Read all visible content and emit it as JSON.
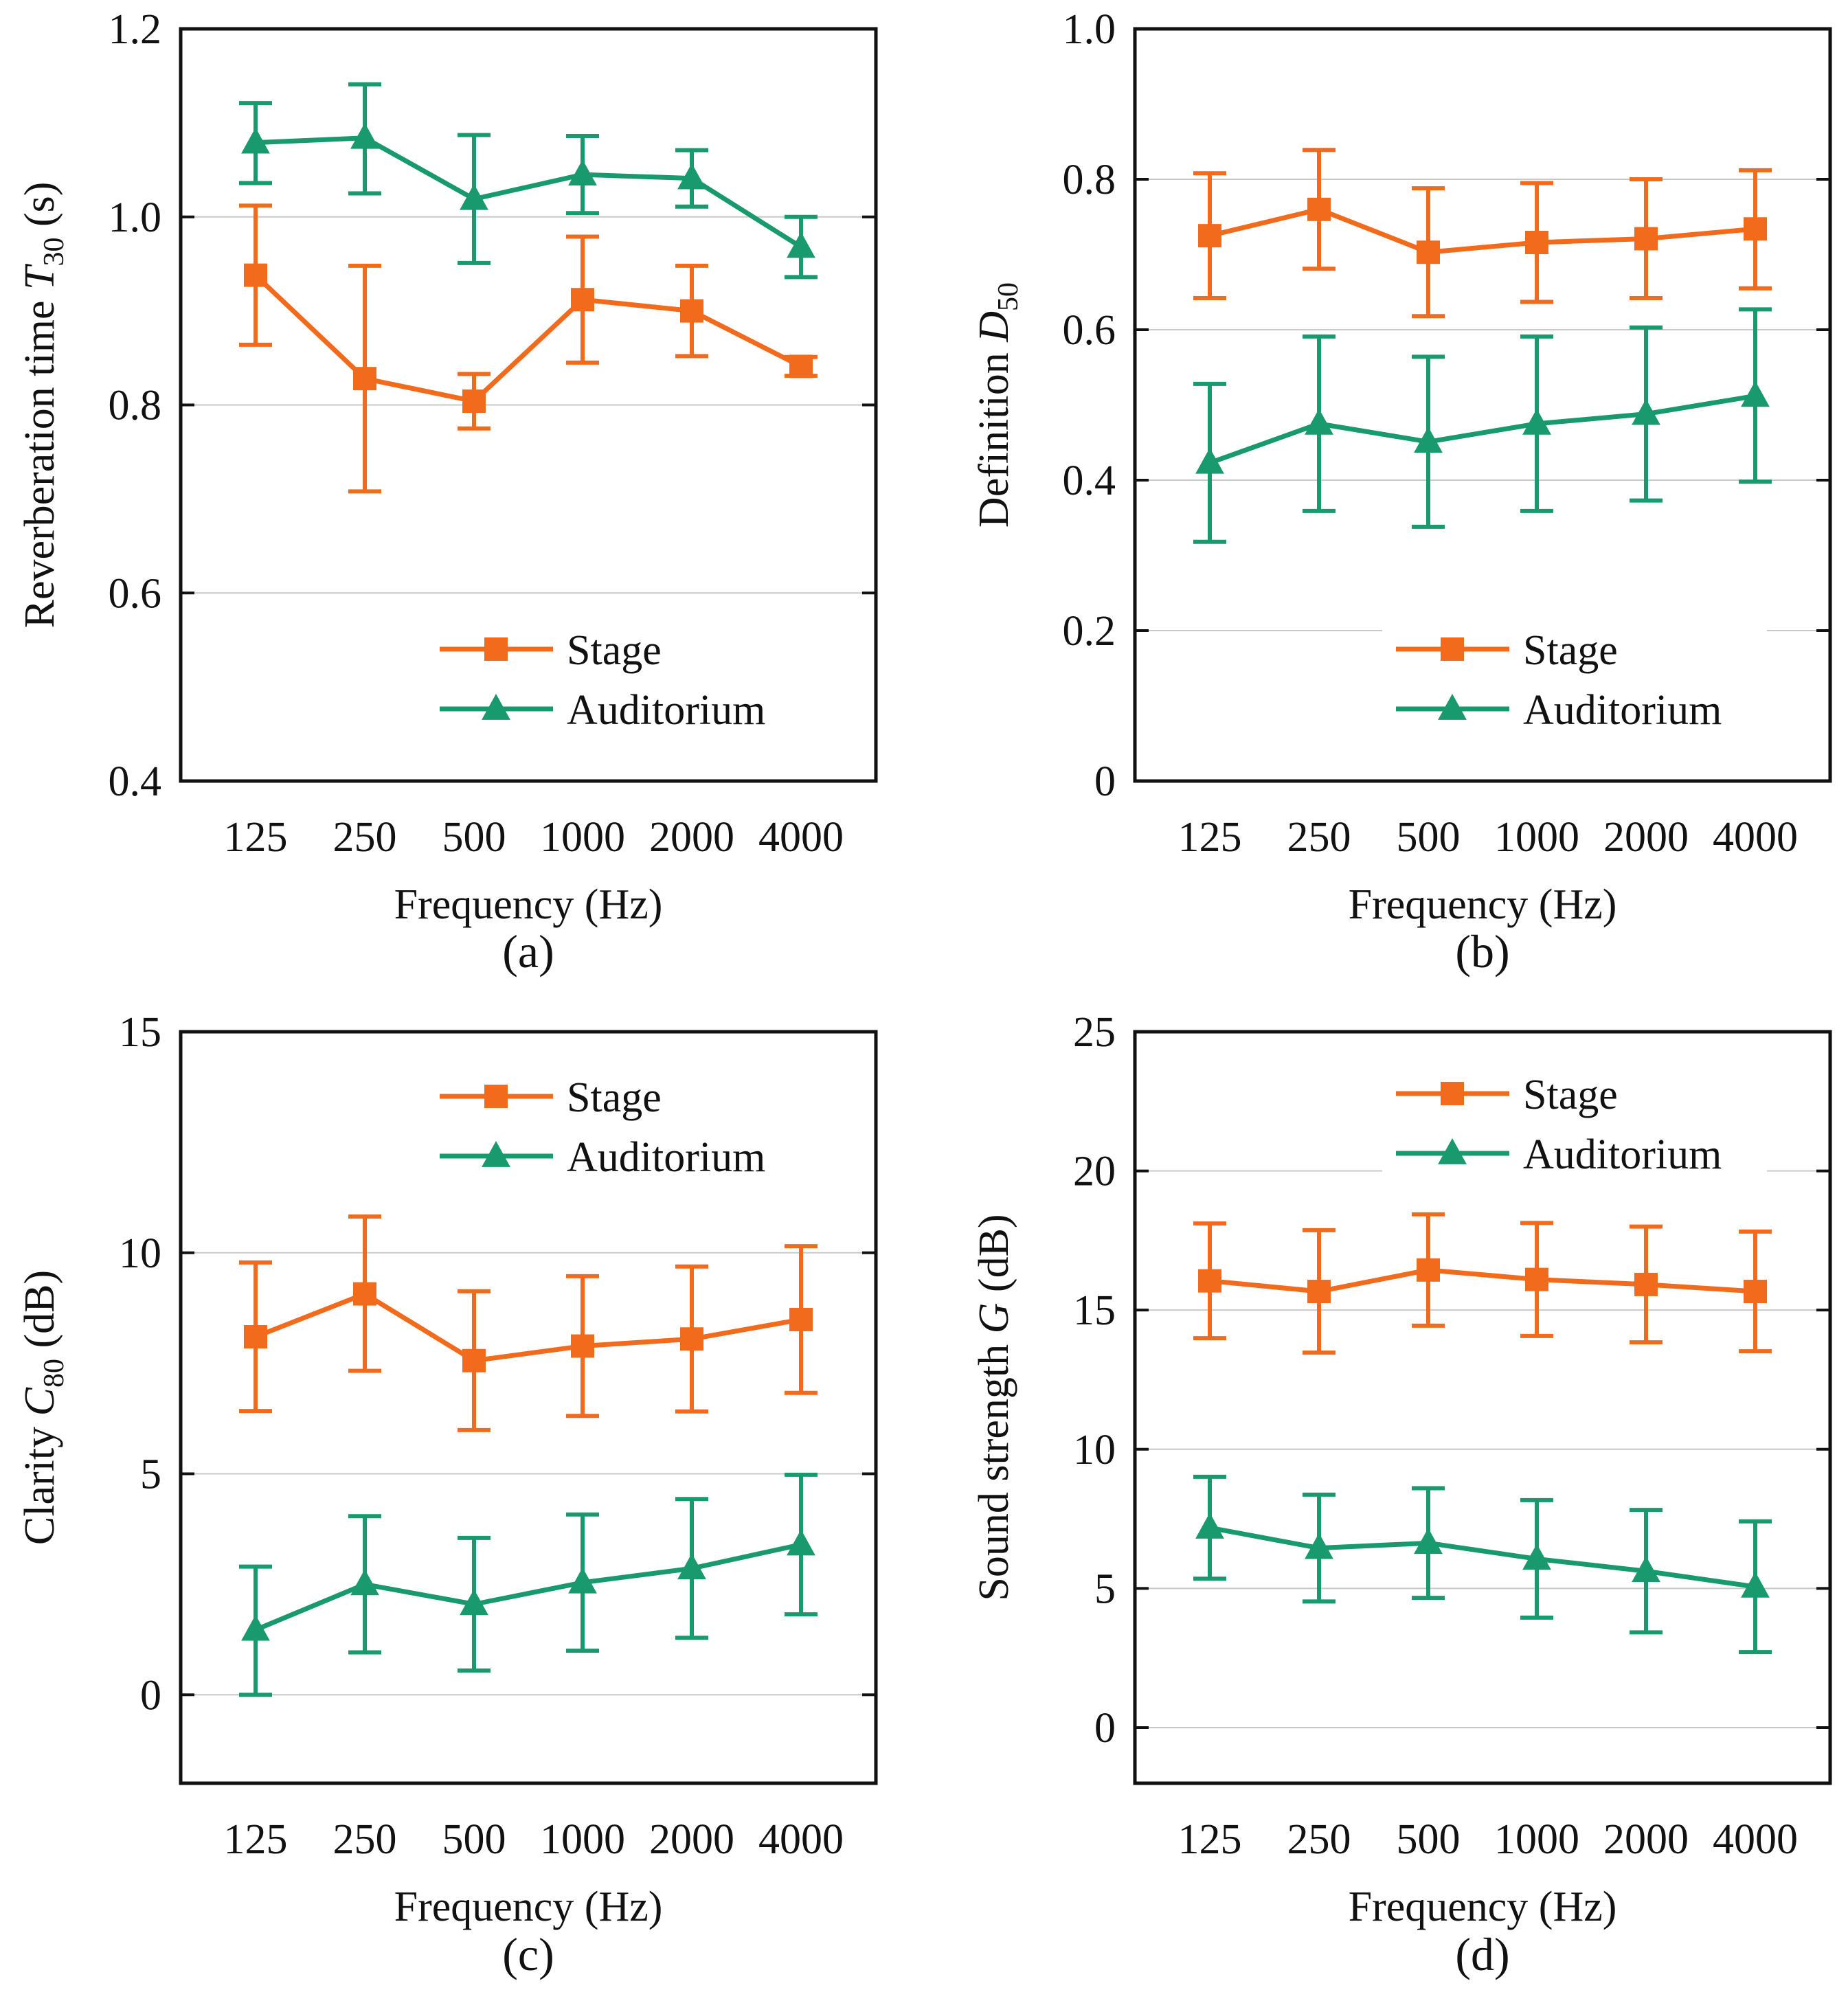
{
  "colors": {
    "stage": "#F26A1B",
    "auditorium": "#199A6E",
    "grid": "#c9c9c9",
    "frame": "#111111"
  },
  "chart_data": [
    {
      "type": "line",
      "panel_label": "(a)",
      "title": "",
      "xlabel": "Frequency (Hz)",
      "ylabel_prefix": "Reverberation time ",
      "ylabel_symbol": "T",
      "ylabel_sub": "30",
      "ylabel_suffix": " (s)",
      "categories": [
        "125",
        "250",
        "500",
        "1000",
        "2000",
        "4000"
      ],
      "ylim": [
        0.4,
        1.2
      ],
      "yticks": [
        0.4,
        0.6,
        0.8,
        1.0,
        1.2
      ],
      "ytick_labels": [
        "0.4",
        "0.6",
        "0.8",
        "1.0",
        "1.2"
      ],
      "grid": true,
      "legend_position": "lower-right",
      "series": [
        {
          "name": "Stage",
          "marker": "square",
          "color_key": "stage",
          "values": [
            0.938,
            0.828,
            0.804,
            0.912,
            0.9,
            0.841
          ],
          "err_low": [
            0.864,
            0.708,
            0.775,
            0.845,
            0.852,
            0.831
          ],
          "err_high": [
            1.012,
            0.948,
            0.833,
            0.979,
            0.948,
            0.851
          ]
        },
        {
          "name": "Auditorium",
          "marker": "triangle",
          "color_key": "auditorium",
          "values": [
            1.079,
            1.084,
            1.019,
            1.045,
            1.041,
            0.968
          ],
          "err_low": [
            1.036,
            1.025,
            0.951,
            1.004,
            1.011,
            0.936
          ],
          "err_high": [
            1.121,
            1.141,
            1.087,
            1.086,
            1.071,
            1.0
          ]
        }
      ]
    },
    {
      "type": "line",
      "panel_label": "(b)",
      "title": "",
      "xlabel": "Frequency (Hz)",
      "ylabel_prefix": "Definition ",
      "ylabel_symbol": "D",
      "ylabel_sub": "50",
      "ylabel_suffix": "",
      "categories": [
        "125",
        "250",
        "500",
        "1000",
        "2000",
        "4000"
      ],
      "ylim": [
        0,
        1.0
      ],
      "yticks": [
        0,
        0.2,
        0.4,
        0.6,
        0.8,
        1.0
      ],
      "ytick_labels": [
        "0",
        "0.2",
        "0.4",
        "0.6",
        "0.8",
        "1.0"
      ],
      "grid": true,
      "legend_position": "lower-right",
      "series": [
        {
          "name": "Stage",
          "marker": "square",
          "color_key": "stage",
          "values": [
            0.725,
            0.76,
            0.703,
            0.716,
            0.721,
            0.734
          ],
          "err_low": [
            0.642,
            0.681,
            0.618,
            0.637,
            0.642,
            0.655
          ],
          "err_high": [
            0.808,
            0.839,
            0.788,
            0.795,
            0.8,
            0.812
          ]
        },
        {
          "name": "Auditorium",
          "marker": "triangle",
          "color_key": "auditorium",
          "values": [
            0.423,
            0.475,
            0.451,
            0.475,
            0.488,
            0.512
          ],
          "err_low": [
            0.318,
            0.359,
            0.338,
            0.359,
            0.373,
            0.398
          ],
          "err_high": [
            0.528,
            0.591,
            0.564,
            0.591,
            0.603,
            0.627
          ]
        }
      ]
    },
    {
      "type": "line",
      "panel_label": "(c)",
      "title": "",
      "xlabel": "Frequency (Hz)",
      "ylabel_prefix": "Clarity ",
      "ylabel_symbol": "C",
      "ylabel_sub": "80",
      "ylabel_suffix": " (dB)",
      "categories": [
        "125",
        "250",
        "500",
        "1000",
        "2000",
        "4000"
      ],
      "ylim": [
        -2,
        15
      ],
      "yticks": [
        0,
        5,
        10,
        15
      ],
      "ytick_labels": [
        "0",
        "5",
        "10",
        "15"
      ],
      "grid": true,
      "legend_position": "top-right",
      "series": [
        {
          "name": "Stage",
          "marker": "square",
          "color_key": "stage",
          "values": [
            8.1,
            9.07,
            7.56,
            7.89,
            8.05,
            8.49
          ],
          "err_low": [
            6.42,
            7.33,
            5.99,
            6.31,
            6.41,
            6.83
          ],
          "err_high": [
            9.78,
            10.82,
            9.13,
            9.47,
            9.69,
            10.15
          ]
        },
        {
          "name": "Auditorium",
          "marker": "triangle",
          "color_key": "auditorium",
          "values": [
            1.47,
            2.5,
            2.05,
            2.54,
            2.86,
            3.4
          ],
          "err_low": [
            0.0,
            0.96,
            0.55,
            1.0,
            1.29,
            1.82
          ],
          "err_high": [
            2.9,
            4.04,
            3.55,
            4.08,
            4.43,
            4.98
          ]
        }
      ]
    },
    {
      "type": "line",
      "panel_label": "(d)",
      "title": "",
      "xlabel": "Frequency (Hz)",
      "ylabel_prefix": "Sound strength ",
      "ylabel_symbol": "G",
      "ylabel_sub": "",
      "ylabel_suffix": " (dB)",
      "categories": [
        "125",
        "250",
        "500",
        "1000",
        "2000",
        "4000"
      ],
      "ylim": [
        -2,
        25
      ],
      "yticks": [
        0,
        5,
        10,
        15,
        20,
        25
      ],
      "ytick_labels": [
        "0",
        "5",
        "10",
        "15",
        "20",
        "25"
      ],
      "grid": true,
      "legend_position": "top-right",
      "series": [
        {
          "name": "Stage",
          "marker": "square",
          "color_key": "stage",
          "values": [
            16.05,
            15.67,
            16.44,
            16.1,
            15.92,
            15.67
          ],
          "err_low": [
            13.99,
            13.47,
            14.44,
            14.07,
            13.84,
            13.52
          ],
          "err_high": [
            18.11,
            17.87,
            18.44,
            18.13,
            18.0,
            17.82
          ]
        },
        {
          "name": "Auditorium",
          "marker": "triangle",
          "color_key": "auditorium",
          "values": [
            7.18,
            6.45,
            6.63,
            6.06,
            5.62,
            5.06
          ],
          "err_low": [
            5.35,
            4.53,
            4.66,
            3.95,
            3.42,
            2.71
          ],
          "err_high": [
            9.01,
            8.37,
            8.6,
            8.17,
            7.82,
            7.41
          ]
        }
      ]
    }
  ]
}
